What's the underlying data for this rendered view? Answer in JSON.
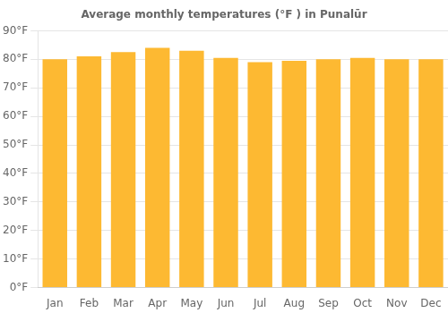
{
  "chart_data": {
    "type": "bar",
    "title": "Average monthly temperatures (°F ) in Punalūr",
    "categories": [
      "Jan",
      "Feb",
      "Mar",
      "Apr",
      "May",
      "Jun",
      "Jul",
      "Aug",
      "Sep",
      "Oct",
      "Nov",
      "Dec"
    ],
    "values": [
      80,
      81,
      82.5,
      84,
      83,
      80.5,
      79,
      79.5,
      80,
      80.5,
      80,
      80
    ],
    "color": "#FDB932",
    "ylim": [
      0,
      90
    ],
    "yticks": [
      {
        "value": 0,
        "label": "0°F"
      },
      {
        "value": 10,
        "label": "10°F"
      },
      {
        "value": 20,
        "label": "20°F"
      },
      {
        "value": 30,
        "label": "30°F"
      },
      {
        "value": 40,
        "label": "40°F"
      },
      {
        "value": 50,
        "label": "50°F"
      },
      {
        "value": 60,
        "label": "60°F"
      },
      {
        "value": 70,
        "label": "70°F"
      },
      {
        "value": 80,
        "label": "80°F"
      },
      {
        "value": 90,
        "label": "90°F"
      }
    ],
    "grid": true
  }
}
